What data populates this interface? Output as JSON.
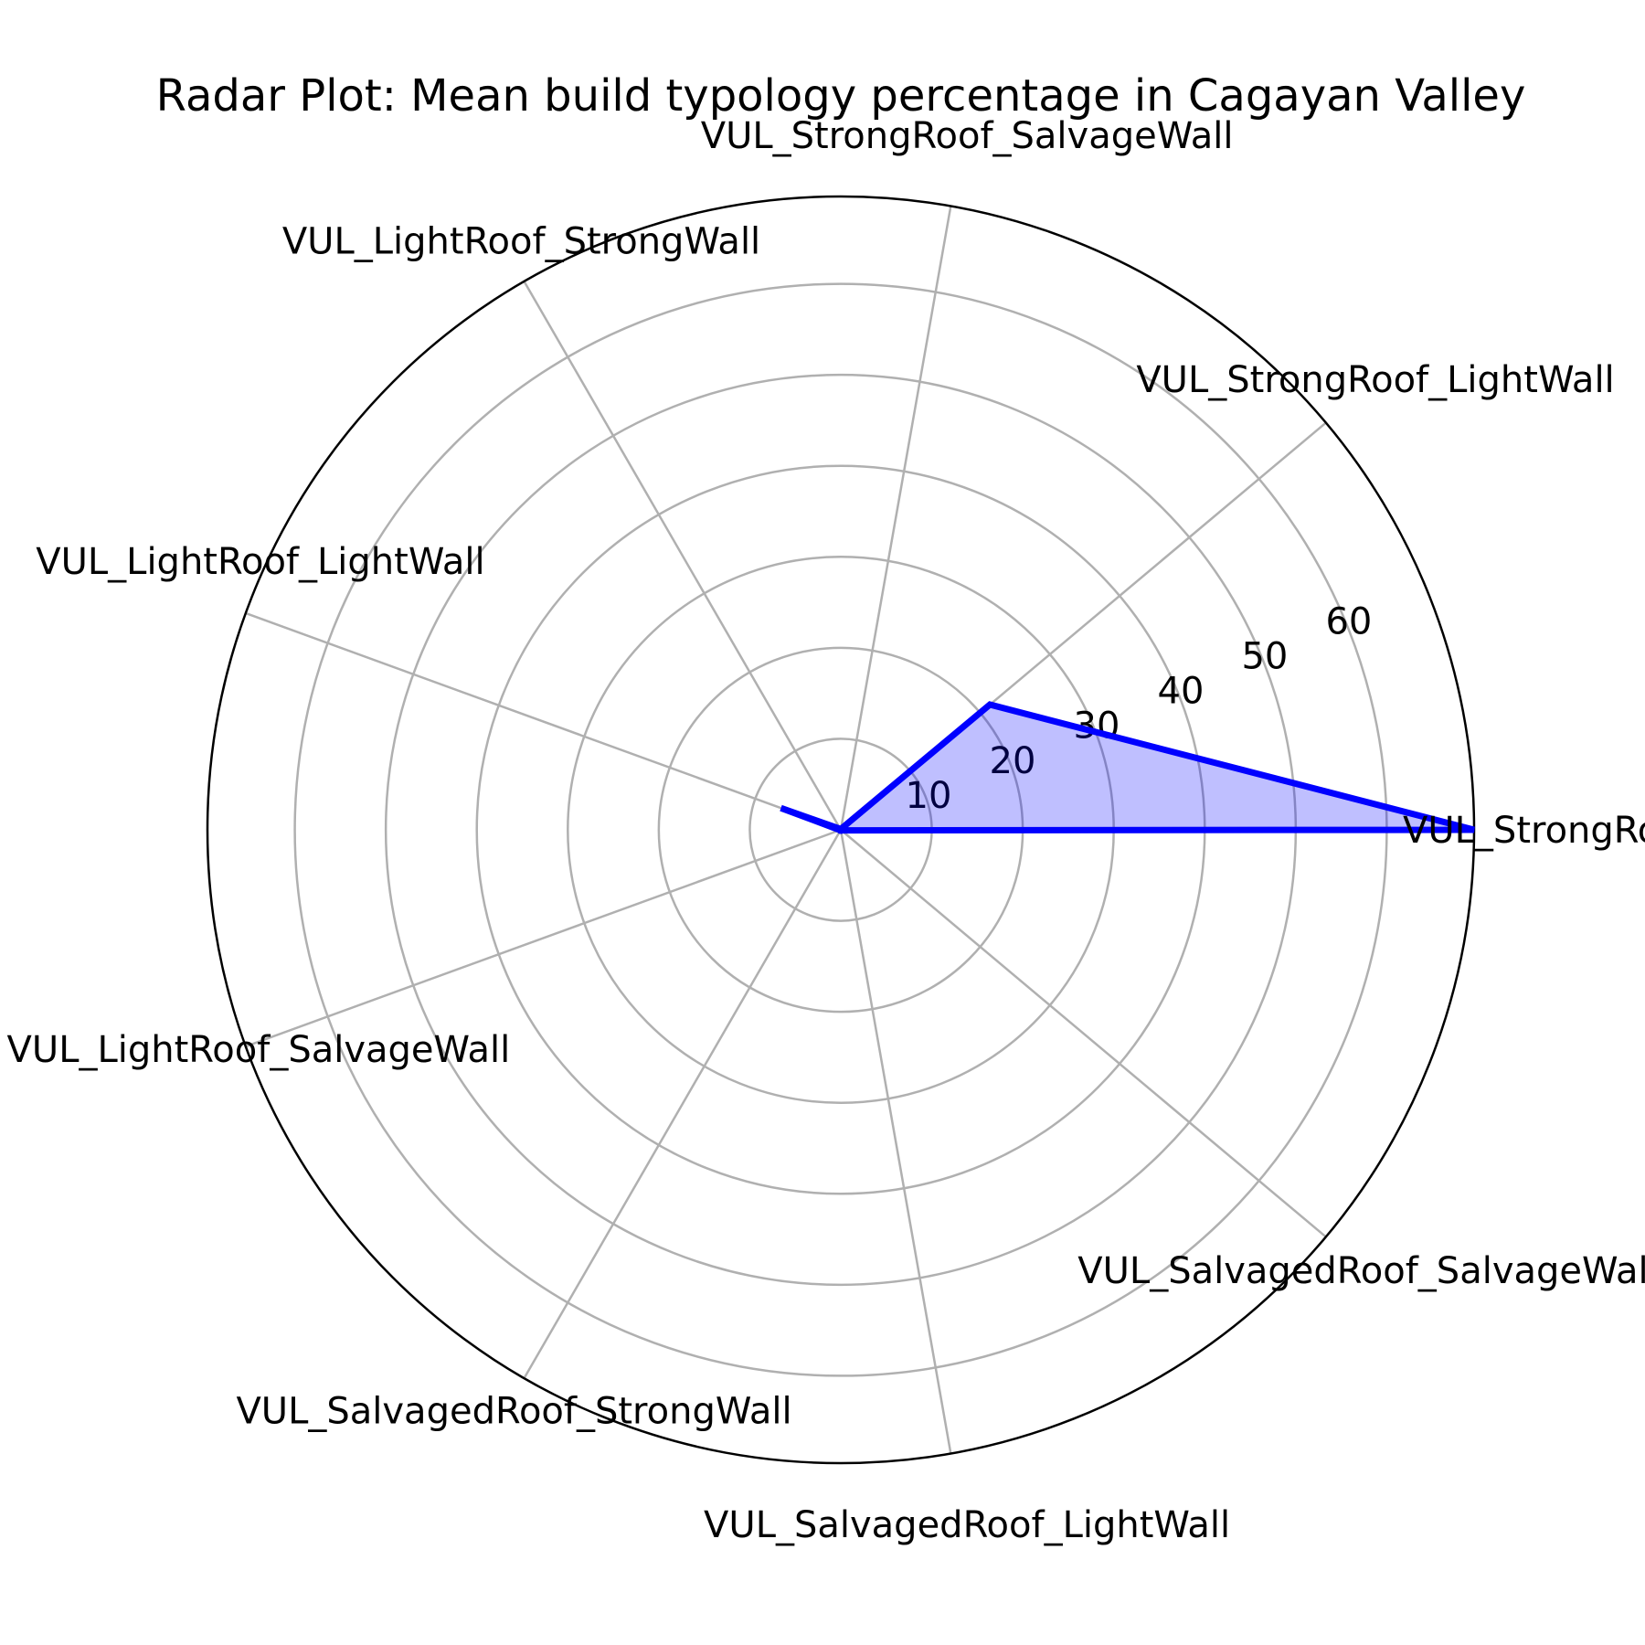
{
  "chart_data": {
    "type": "radar",
    "title": "Radar Plot: Mean build typology percentage in Cagayan Valley",
    "categories": [
      "VUL_StrongRoof_StrongWall",
      "VUL_StrongRoof_LightWall",
      "VUL_StrongRoof_SalvageWall",
      "VUL_LightRoof_StrongWall",
      "VUL_LightRoof_LightWall",
      "VUL_LightRoof_SalvageWall",
      "VUL_SalvagedRoof_StrongWall",
      "VUL_SalvagedRoof_LightWall",
      "VUL_SalvagedRoof_SalvageWall"
    ],
    "values": [
      69.6,
      21.4,
      0.1,
      0.1,
      7.0,
      0.1,
      0.1,
      0.1,
      0.1
    ],
    "rlim": [
      0,
      69.6
    ],
    "rticks": [
      10,
      20,
      30,
      40,
      50,
      60
    ],
    "rtick_labels": [
      "10",
      "20",
      "30",
      "40",
      "50",
      "60"
    ],
    "grid": true,
    "line_color": "#0000ff",
    "fill_color": "#0000ff",
    "grid_color": "#b0b0b0"
  }
}
